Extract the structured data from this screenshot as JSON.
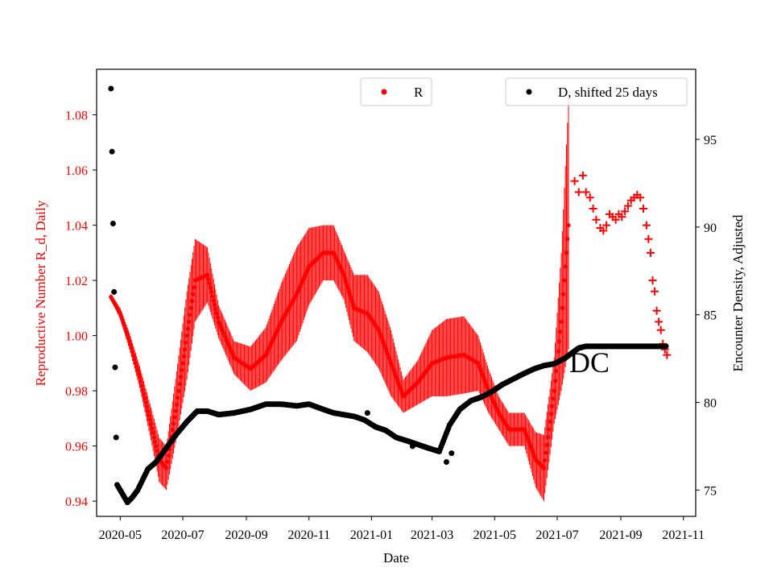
{
  "chart_data": {
    "type": "scatter",
    "xlabel": "Date",
    "ylabel_left": "Reproductive Number R_d, Daily",
    "ylabel_right": "Encounter Density, Adjusted",
    "annotation": "DC",
    "x_ticks": [
      "2020-05",
      "2020-07",
      "2020-09",
      "2020-11",
      "2021-01",
      "2021-03",
      "2021-05",
      "2021-07",
      "2021-09",
      "2021-11"
    ],
    "x_tick_dates": [
      "2020-05-01",
      "2020-07-01",
      "2020-09-01",
      "2020-11-01",
      "2021-01-01",
      "2021-03-01",
      "2021-05-01",
      "2021-07-01",
      "2021-09-01",
      "2021-11-01"
    ],
    "xlim": [
      "2020-04-08",
      "2021-11-13"
    ],
    "y_left_ticks": [
      "0.94",
      "0.96",
      "0.98",
      "1.00",
      "1.02",
      "1.04",
      "1.06",
      "1.08"
    ],
    "y_left_tick_values": [
      0.94,
      0.96,
      0.98,
      1.0,
      1.02,
      1.04,
      1.06,
      1.08
    ],
    "ylim_left": [
      0.9345,
      1.0965
    ],
    "y_right_ticks": [
      "75",
      "80",
      "85",
      "90",
      "95"
    ],
    "y_right_tick_values": [
      75,
      80,
      85,
      90,
      95
    ],
    "ylim_right": [
      73.5,
      99.0
    ],
    "legend_left": {
      "label": "R",
      "color": "#ff0000",
      "placement": "upper-center"
    },
    "legend_right": {
      "label": "D, shifted 25 days",
      "color": "#000000",
      "placement": "upper-right"
    },
    "colors": {
      "R": "#ff0000",
      "D": "#000000",
      "left_axis": "#ff0000",
      "right_axis": "#000000"
    },
    "series": [
      {
        "name": "R",
        "axis": "left",
        "marker": "dot-with-daily-errorbars",
        "x": [
          "2020-04-22",
          "2020-05-01",
          "2020-05-10",
          "2020-05-20",
          "2020-05-31",
          "2020-06-08",
          "2020-06-15",
          "2020-06-25",
          "2020-07-05",
          "2020-07-13",
          "2020-07-25",
          "2020-08-05",
          "2020-08-20",
          "2020-09-05",
          "2020-09-20",
          "2020-10-05",
          "2020-10-20",
          "2020-11-01",
          "2020-11-15",
          "2020-11-25",
          "2020-12-05",
          "2020-12-15",
          "2020-12-28",
          "2021-01-08",
          "2021-01-20",
          "2021-02-01",
          "2021-02-15",
          "2021-03-01",
          "2021-03-15",
          "2021-04-01",
          "2021-04-15",
          "2021-04-25",
          "2021-05-05",
          "2021-05-15",
          "2021-05-30",
          "2021-06-10",
          "2021-06-18",
          "2021-06-28",
          "2021-07-05",
          "2021-07-12"
        ],
        "y": [
          1.014,
          1.008,
          0.998,
          0.985,
          0.968,
          0.955,
          0.952,
          0.975,
          1.0,
          1.02,
          1.022,
          1.005,
          0.992,
          0.988,
          0.993,
          1.005,
          1.015,
          1.025,
          1.03,
          1.03,
          1.022,
          1.01,
          1.008,
          1.002,
          0.99,
          0.978,
          0.983,
          0.99,
          0.992,
          0.993,
          0.99,
          0.98,
          0.972,
          0.966,
          0.966,
          0.955,
          0.952,
          0.98,
          1.005,
          1.04
        ],
        "error_band": [
          0.001,
          0.002,
          0.003,
          0.004,
          0.006,
          0.008,
          0.008,
          0.012,
          0.016,
          0.015,
          0.01,
          0.006,
          0.006,
          0.008,
          0.01,
          0.014,
          0.017,
          0.014,
          0.01,
          0.01,
          0.009,
          0.012,
          0.014,
          0.014,
          0.012,
          0.006,
          0.008,
          0.012,
          0.014,
          0.014,
          0.01,
          0.008,
          0.006,
          0.006,
          0.006,
          0.01,
          0.012,
          0.012,
          0.025,
          0.045
        ]
      },
      {
        "name": "R",
        "axis": "left",
        "marker": "plus",
        "x": [
          "2021-07-18",
          "2021-07-22",
          "2021-07-26",
          "2021-07-29",
          "2021-08-02",
          "2021-08-05",
          "2021-08-08",
          "2021-08-12",
          "2021-08-15",
          "2021-08-18",
          "2021-08-21",
          "2021-08-24",
          "2021-08-27",
          "2021-08-30",
          "2021-09-02",
          "2021-09-05",
          "2021-09-08",
          "2021-09-11",
          "2021-09-14",
          "2021-09-17",
          "2021-09-20",
          "2021-09-23",
          "2021-09-26",
          "2021-09-28",
          "2021-09-30",
          "2021-10-02",
          "2021-10-04",
          "2021-10-06",
          "2021-10-08",
          "2021-10-10",
          "2021-10-12",
          "2021-10-14",
          "2021-10-16"
        ],
        "y": [
          1.056,
          1.052,
          1.058,
          1.052,
          1.05,
          1.046,
          1.042,
          1.039,
          1.038,
          1.04,
          1.044,
          1.043,
          1.042,
          1.044,
          1.043,
          1.045,
          1.047,
          1.049,
          1.05,
          1.051,
          1.05,
          1.046,
          1.04,
          1.035,
          1.03,
          1.02,
          1.016,
          1.009,
          1.005,
          1.002,
          0.997,
          0.995,
          0.993
        ]
      },
      {
        "name": "D, shifted 25 days",
        "axis": "right",
        "marker": "dot",
        "x": [
          "2020-04-22",
          "2020-04-23",
          "2020-04-24",
          "2020-04-25",
          "2020-04-26",
          "2020-04-27",
          "2020-04-28",
          "2020-05-03",
          "2020-05-08",
          "2020-05-13",
          "2020-05-18",
          "2020-05-23",
          "2020-05-28",
          "2020-06-05",
          "2020-06-15",
          "2020-06-25",
          "2020-07-05",
          "2020-07-15",
          "2020-07-25",
          "2020-08-05",
          "2020-08-20",
          "2020-09-05",
          "2020-09-20",
          "2020-10-05",
          "2020-10-20",
          "2020-11-01",
          "2020-11-15",
          "2020-11-25",
          "2020-12-05",
          "2020-12-15",
          "2020-12-25",
          "2021-01-05",
          "2021-01-15",
          "2021-01-25",
          "2021-02-05",
          "2021-02-15",
          "2021-02-25",
          "2021-03-08",
          "2021-03-18",
          "2021-03-28",
          "2021-04-08",
          "2021-04-18",
          "2021-04-28",
          "2021-05-08",
          "2021-05-18",
          "2021-05-28",
          "2021-06-08",
          "2021-06-18",
          "2021-06-28",
          "2021-07-08",
          "2021-07-15",
          "2021-07-22",
          "2021-07-29",
          "2021-08-05",
          "2021-08-15",
          "2021-08-25",
          "2021-09-05",
          "2021-09-15",
          "2021-09-25",
          "2021-10-05",
          "2021-10-15"
        ],
        "y": [
          97.9,
          94.3,
          90.2,
          86.3,
          82.0,
          78.0,
          75.3,
          74.8,
          74.3,
          74.6,
          75.0,
          75.6,
          76.2,
          76.6,
          77.4,
          78.2,
          78.9,
          79.5,
          79.5,
          79.3,
          79.4,
          79.6,
          79.9,
          79.9,
          79.8,
          79.9,
          79.6,
          79.4,
          79.3,
          79.2,
          79.0,
          78.6,
          78.4,
          78.0,
          77.8,
          77.6,
          77.4,
          77.2,
          78.7,
          79.6,
          80.1,
          80.3,
          80.6,
          81.0,
          81.3,
          81.6,
          81.9,
          82.1,
          82.2,
          82.5,
          82.8,
          83.1,
          83.2,
          83.2,
          83.2,
          83.2,
          83.2,
          83.2,
          83.2,
          83.2,
          83.2
        ],
        "outliers": {
          "x": [
            "2020-12-28",
            "2021-02-10",
            "2021-03-15",
            "2021-03-20"
          ],
          "y": [
            79.4,
            77.5,
            76.6,
            77.1
          ]
        }
      }
    ]
  }
}
